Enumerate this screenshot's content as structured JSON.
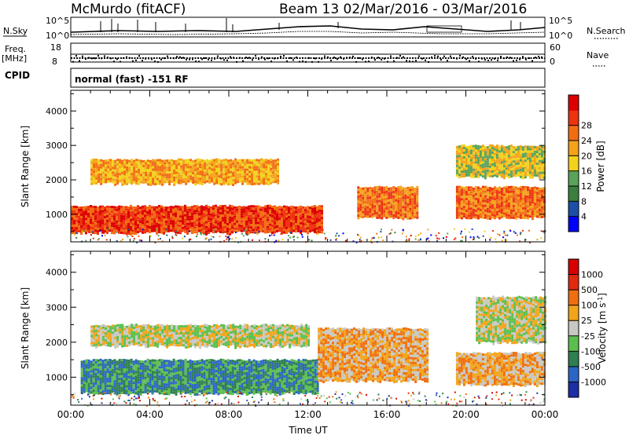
{
  "header": {
    "title": "McMurdo (fitACF)",
    "beam_info": "Beam 13 02/Mar/2016 - 03/Mar/2016"
  },
  "top_panels": {
    "nsky_label": "N.Sky",
    "nsearch_label": "N.Search",
    "nsky_ticks": [
      "10^5",
      "10^0"
    ],
    "nsearch_ticks": [
      "10^5",
      "10^0"
    ],
    "freq_label": "Freq.",
    "freq_unit": "[MHz]",
    "freq_ticks": [
      "18",
      "8"
    ],
    "nave_label": "Nave",
    "nave_ticks": [
      "60",
      "0"
    ],
    "cpid_label": "CPID",
    "cpid_text": "normal (fast) -151 RF"
  },
  "colors": {
    "power_scale": [
      "#0000ff",
      "#1c4fa6",
      "#3b7f3f",
      "#5aa35a",
      "#f2d21a",
      "#f4a21a",
      "#f26d12",
      "#ee3311",
      "#dd0000"
    ],
    "velocity_scale": [
      "#1d2fa5",
      "#2b66c7",
      "#2f7f50",
      "#5bbf4e",
      "#c8c8c2",
      "#f2a41a",
      "#ef6f10",
      "#e02a10",
      "#d60000"
    ]
  },
  "chart_data": [
    {
      "type": "heatmap",
      "name": "power",
      "ylabel": "Slant Range [km]",
      "ylim": [
        200,
        4600
      ],
      "y_ticks": [
        "1000",
        "2000",
        "3000",
        "4000"
      ],
      "x_ticks": [
        "00:00",
        "04:00",
        "08:00",
        "12:00",
        "16:00",
        "20:00",
        "00:00"
      ],
      "colorbar_label": "Power [dB]",
      "colorbar_ticks": [
        "4",
        "8",
        "12",
        "16",
        "20",
        "24",
        "28"
      ],
      "bands": [
        {
          "t0": 0.0,
          "t1": 12.7,
          "r0": 480,
          "r1": 1250,
          "level": 7
        },
        {
          "t0": 1.0,
          "t1": 10.5,
          "r0": 1900,
          "r1": 2600,
          "level": 5
        },
        {
          "t0": 14.5,
          "t1": 17.5,
          "r0": 900,
          "r1": 1800,
          "level": 6
        },
        {
          "t0": 19.5,
          "t1": 24.0,
          "r0": 900,
          "r1": 1800,
          "level": 6
        },
        {
          "t0": 19.5,
          "t1": 24.0,
          "r0": 2100,
          "r1": 3000,
          "level": 4
        }
      ]
    },
    {
      "type": "heatmap",
      "name": "velocity",
      "ylabel": "Slant Range [km]",
      "ylim": [
        200,
        4600
      ],
      "y_ticks": [
        "1000",
        "2000",
        "3000",
        "4000"
      ],
      "x_ticks": [
        "00:00",
        "04:00",
        "08:00",
        "12:00",
        "16:00",
        "20:00",
        "00:00"
      ],
      "xlabel": "Time UT",
      "colorbar_label": "Velocity [m s",
      "colorbar_label_sup": "-1",
      "colorbar_label_end": "]",
      "colorbar_ticks": [
        "1000",
        "500",
        "100",
        "25",
        "-25",
        "-100",
        "-500",
        "-1000"
      ],
      "bands": [
        {
          "t0": 0.5,
          "t1": 12.5,
          "r0": 550,
          "r1": 1500,
          "level": 2
        },
        {
          "t0": 1.0,
          "t1": 12.0,
          "r0": 1900,
          "r1": 2500,
          "level": 4
        },
        {
          "t0": 12.5,
          "t1": 18.0,
          "r0": 900,
          "r1": 2400,
          "level": 5
        },
        {
          "t0": 19.5,
          "t1": 24.0,
          "r0": 800,
          "r1": 1700,
          "level": 5
        },
        {
          "t0": 20.5,
          "t1": 24.0,
          "r0": 2000,
          "r1": 3300,
          "level": 4
        }
      ]
    }
  ]
}
